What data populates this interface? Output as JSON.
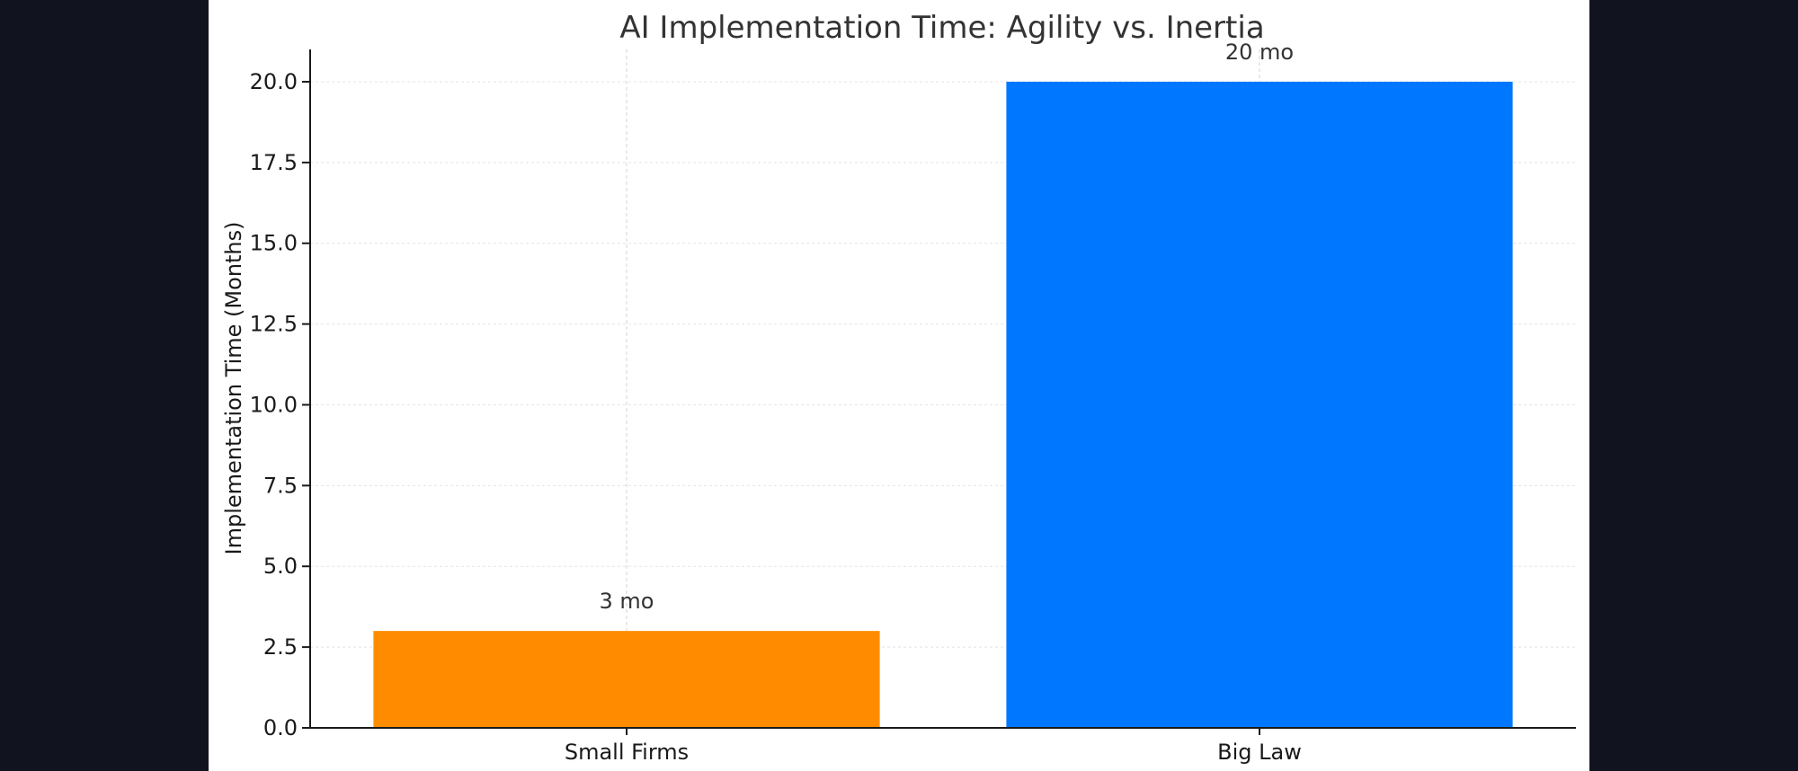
{
  "chart_data": {
    "type": "bar",
    "title": "AI Implementation Time: Agility vs. Inertia",
    "xlabel": "",
    "ylabel": "Implementation Time (Months)",
    "categories": [
      "Small Firms",
      "Big Law"
    ],
    "values": [
      3,
      20
    ],
    "data_labels": [
      "3 mo",
      "20 mo"
    ],
    "colors": [
      "#ff8c00",
      "#0077ff"
    ],
    "ylim": [
      0,
      21
    ],
    "yticks": [
      0,
      2.5,
      5,
      7.5,
      10,
      12.5,
      15,
      17.5,
      20
    ],
    "ytick_labels": [
      "0.0",
      "2.5",
      "5.0",
      "7.5",
      "10.0",
      "12.5",
      "15.0",
      "17.5",
      "20.0"
    ],
    "grid": true,
    "legend": "none"
  }
}
